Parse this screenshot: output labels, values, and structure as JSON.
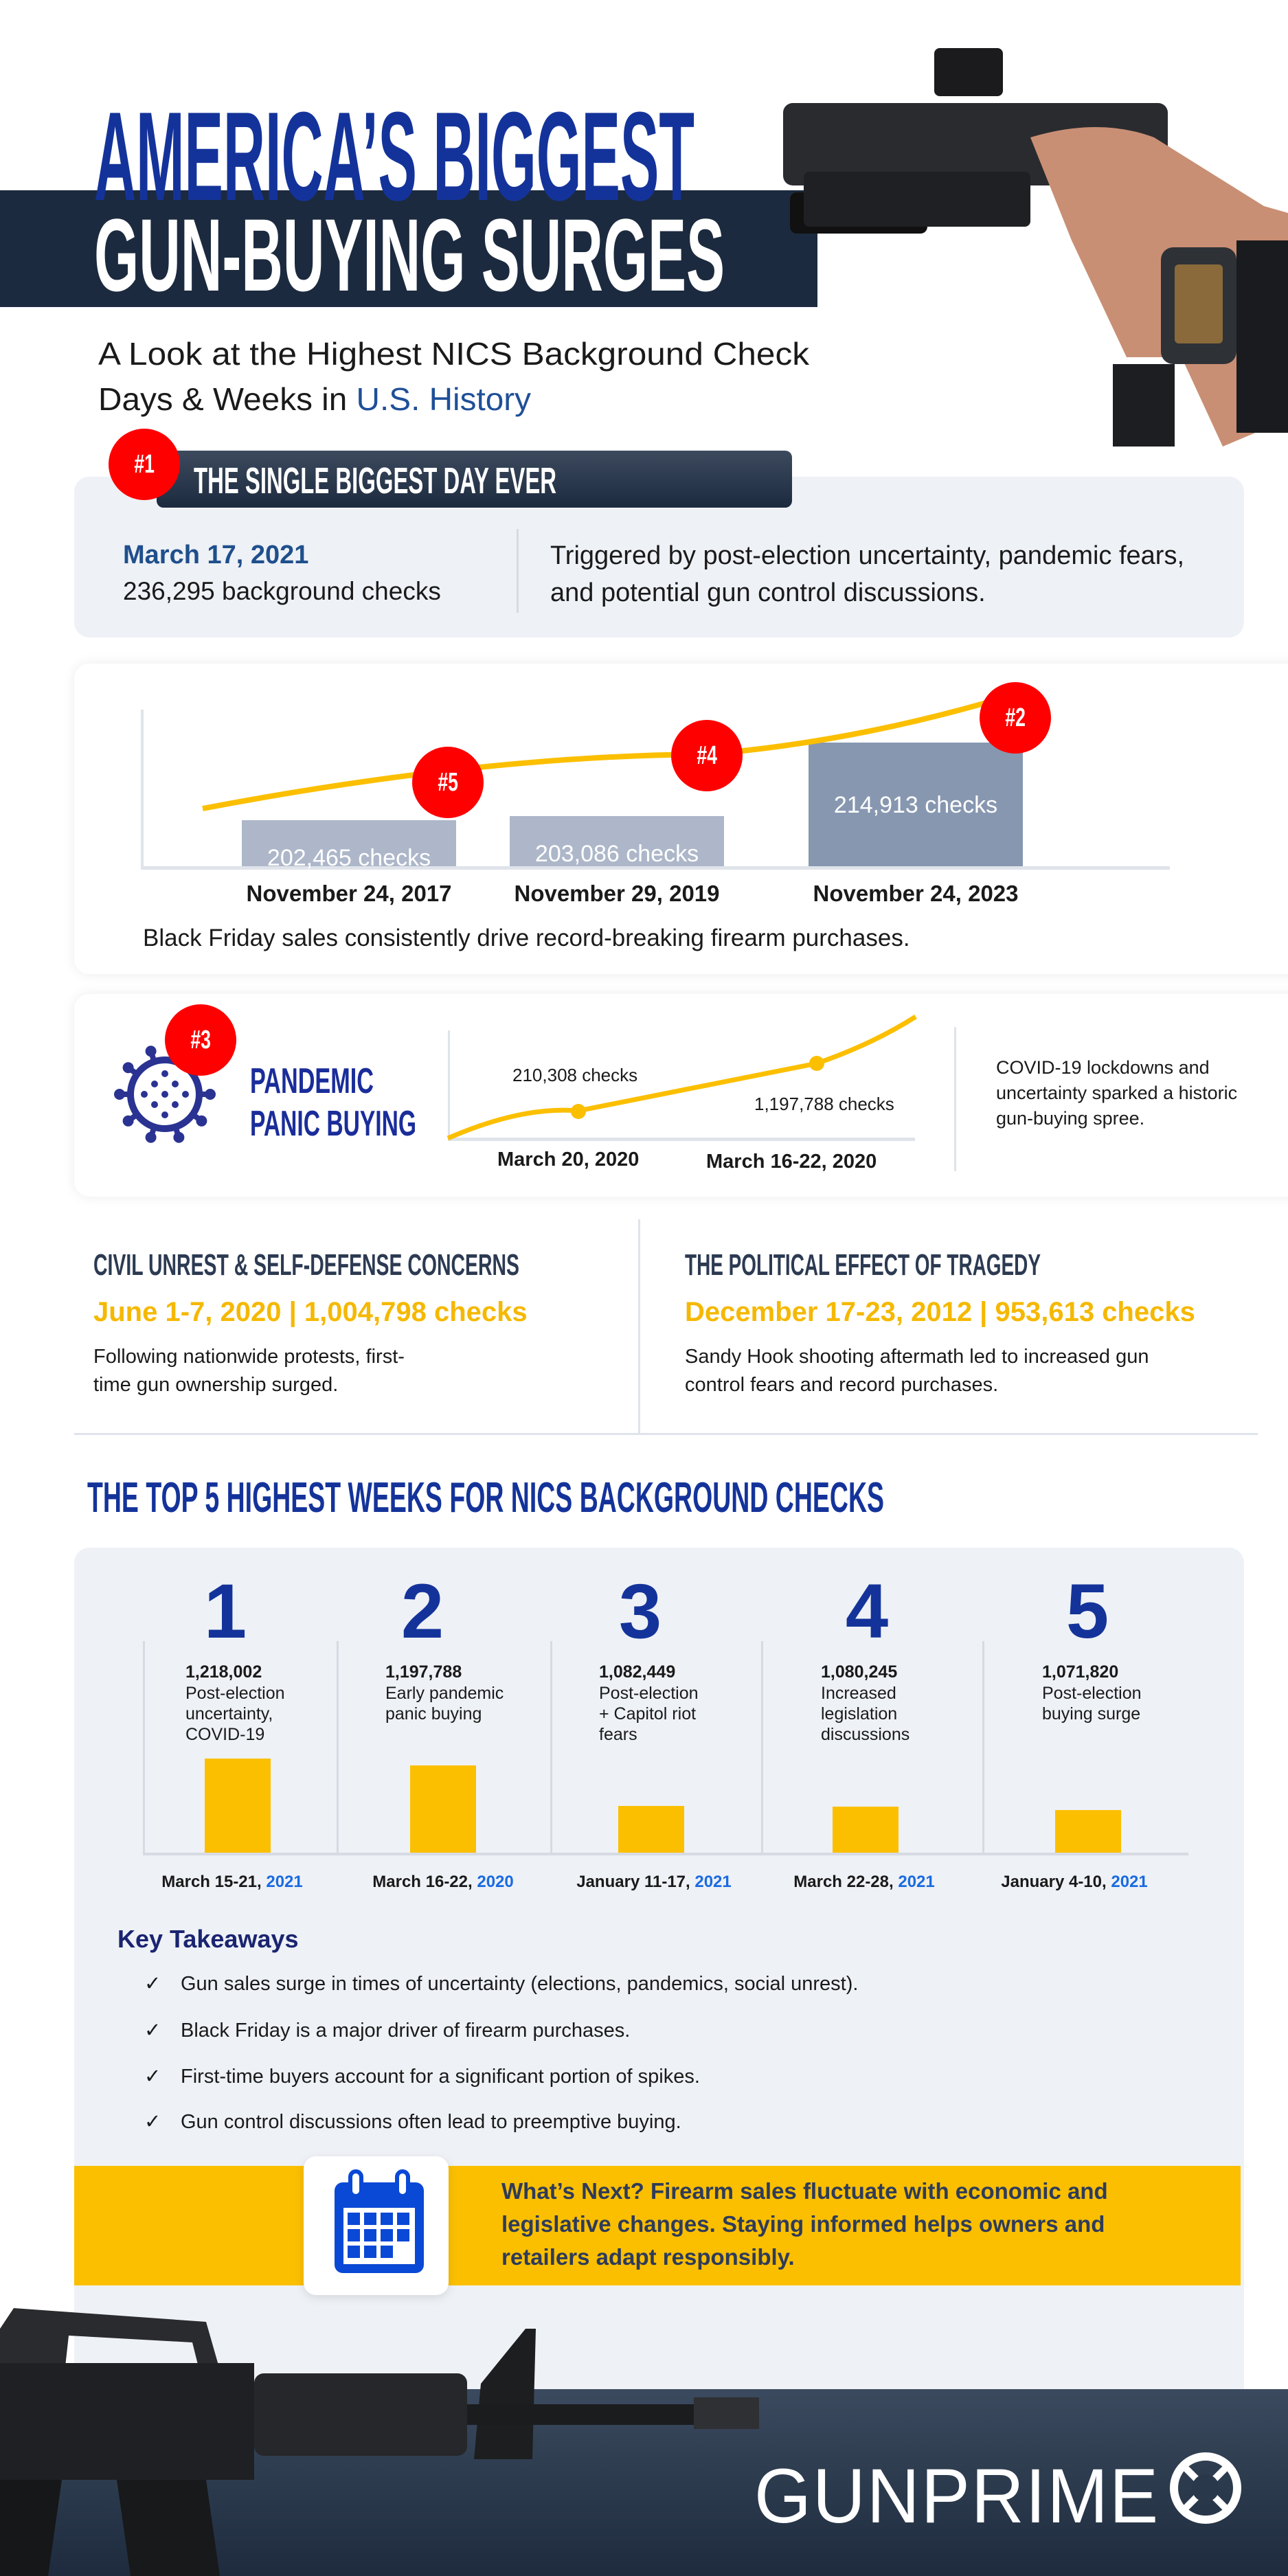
{
  "header": {
    "title_line1": "AMERICA’S BIGGEST",
    "title_line2": "GUN-BUYING SURGES",
    "subtitle_line1": "A Look at the Highest NICS Background Check",
    "subtitle_line2_prefix": "Days & Weeks in ",
    "subtitle_line2_highlight": "U.S. History"
  },
  "biggest_day": {
    "badge": "#1",
    "heading": "THE SINGLE BIGGEST DAY EVER",
    "date": "March 17, 2021",
    "checks": "236,295 background checks",
    "description": "Triggered by post-election uncertainty, pandemic fears, and potential gun control discussions."
  },
  "black_friday": {
    "caption": "Black Friday sales consistently drive record-breaking firearm purchases.",
    "items": [
      {
        "badge": "#5",
        "label": "202,465  checks",
        "value": 202465,
        "date": "November 24, 2017"
      },
      {
        "badge": "#4",
        "label": "203,086 checks",
        "value": 203086,
        "date": "November 29, 2019"
      },
      {
        "badge": "#2",
        "label": "214,913 checks",
        "value": 214913,
        "date": "November 24, 2023"
      }
    ]
  },
  "pandemic": {
    "badge": "#3",
    "title_line1": "PANDEMIC",
    "title_line2": "PANIC BUYING",
    "points": [
      {
        "label": "210,308 checks",
        "date": "March 20, 2020"
      },
      {
        "label": "1,197,788 checks",
        "date": "March 16-22, 2020"
      }
    ],
    "description": [
      "COVID-19 lockdowns and",
      "uncertainty sparked a historic",
      "gun-buying spree."
    ]
  },
  "events": [
    {
      "heading": "CIVIL UNREST & SELF-DEFENSE CONCERNS",
      "stat": "June 1-7, 2020 | 1,004,798 checks",
      "text": [
        "Following nationwide protests, first-",
        "time gun ownership surged."
      ]
    },
    {
      "heading": "THE POLITICAL EFFECT OF TRAGEDY",
      "stat": "December 17-23, 2012 | 953,613 checks",
      "text": [
        "Sandy Hook shooting aftermath led to increased gun",
        "control fears and record purchases."
      ]
    }
  ],
  "top5": {
    "heading": "THE TOP 5 HIGHEST WEEKS FOR NICS BACKGROUND CHECKS",
    "items": [
      {
        "rank": "1",
        "value_label": "1,218,002",
        "value": 1218002,
        "desc": [
          "Post-election",
          "uncertainty,",
          "COVID-19"
        ],
        "date": "March 15-21, ",
        "year": "2021"
      },
      {
        "rank": "2",
        "value_label": "1,197,788",
        "value": 1197788,
        "desc": [
          "Early pandemic",
          "panic buying"
        ],
        "date": "March 16-22, ",
        "year": "2020"
      },
      {
        "rank": "3",
        "value_label": "1,082,449",
        "value": 1082449,
        "desc": [
          "Post-election",
          "+ Capitol riot",
          "fears"
        ],
        "date": "January 11-17, ",
        "year": "2021"
      },
      {
        "rank": "4",
        "value_label": "1,080,245",
        "value": 1080245,
        "desc": [
          "Increased",
          "legislation",
          "discussions"
        ],
        "date": "March 22-28, ",
        "year": "2021"
      },
      {
        "rank": "5",
        "value_label": "1,071,820",
        "value": 1071820,
        "desc": [
          "Post-election",
          "buying surge"
        ],
        "date": "January 4-10, ",
        "year": "2021"
      }
    ]
  },
  "takeaways": {
    "heading": "Key Takeaways",
    "check": "✓",
    "items": [
      "Gun sales surge in times of uncertainty (elections, pandemics, social unrest).",
      "Black Friday is a major driver of firearm purchases.",
      "First-time buyers account for a significant portion of spikes.",
      "Gun control discussions often lead to preemptive buying."
    ]
  },
  "whats_next": {
    "icon": "calendar-icon",
    "lines": [
      "What’s Next? Firearm sales fluctuate with economic and",
      "legislative changes. Staying informed helps owners and",
      "retailers adapt responsibly."
    ]
  },
  "footer": {
    "logo": "GUNPRIME"
  },
  "colors": {
    "navy": "#1c2a3f",
    "title_blue": "#14339a",
    "red": "#ff0000",
    "yellow": "#fbbf00",
    "card": "#eef1f6",
    "link_blue": "#1a6be0"
  }
}
